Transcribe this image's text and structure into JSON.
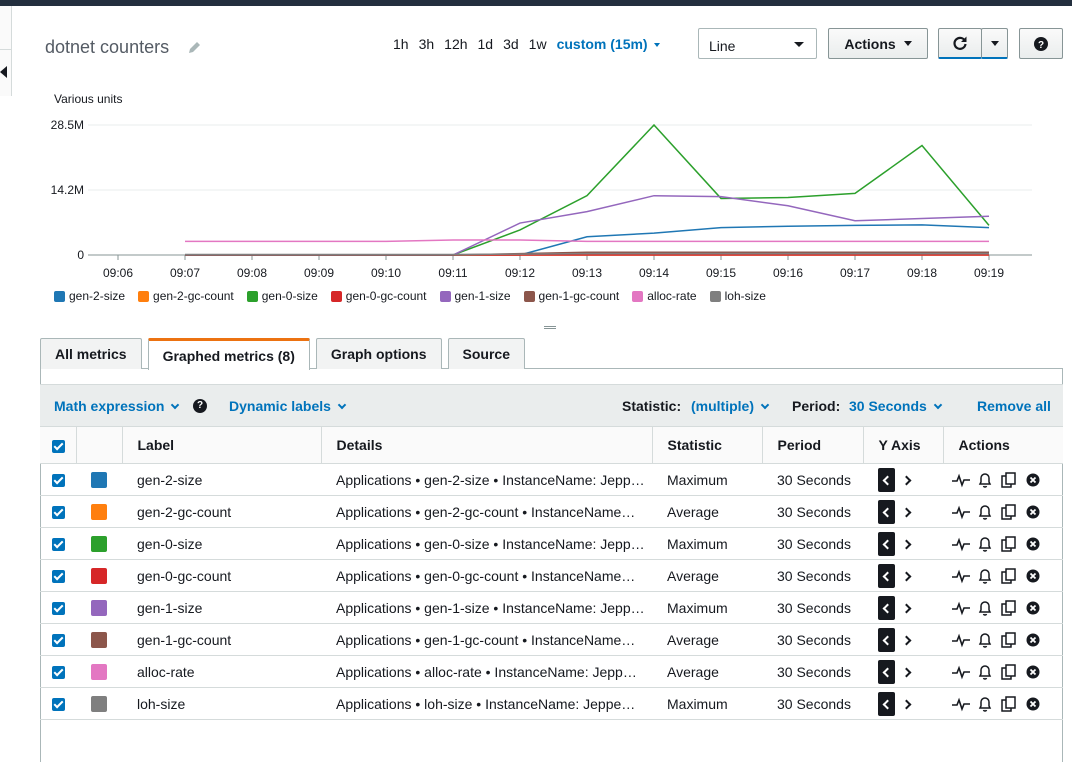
{
  "dashboard": {
    "title": "dotnet counters"
  },
  "time_ranges": [
    {
      "label": "1h"
    },
    {
      "label": "3h"
    },
    {
      "label": "12h"
    },
    {
      "label": "1d"
    },
    {
      "label": "3d"
    },
    {
      "label": "1w"
    },
    {
      "label": "custom (15m)",
      "active": true
    }
  ],
  "view_select": {
    "value": "Line"
  },
  "buttons": {
    "actions": "Actions"
  },
  "chart_data": {
    "type": "line",
    "ylabel": "Various units",
    "y_ticks": [
      "0",
      "14.2M",
      "28.5M"
    ],
    "ylim": [
      0,
      28.5
    ],
    "y_unit": "M",
    "x": [
      "09:06",
      "09:07",
      "09:08",
      "09:09",
      "09:10",
      "09:11",
      "09:12",
      "09:13",
      "09:14",
      "09:15",
      "09:16",
      "09:17",
      "09:18",
      "09:19"
    ],
    "grid": true,
    "legend_position": "bottom-left",
    "series": [
      {
        "name": "gen-2-size",
        "color": "#1f77b4",
        "values": [
          null,
          0,
          0,
          0,
          0,
          0,
          0,
          4.0,
          4.8,
          6.0,
          6.3,
          6.5,
          6.6,
          6.0
        ]
      },
      {
        "name": "gen-2-gc-count",
        "color": "#ff7f0e",
        "values": [
          null,
          0,
          0,
          0,
          0,
          0,
          0,
          0,
          0,
          0,
          0,
          0,
          0,
          0
        ]
      },
      {
        "name": "gen-0-size",
        "color": "#2ca02c",
        "values": [
          null,
          0,
          0,
          0,
          0,
          0,
          5.5,
          13.0,
          28.5,
          12.4,
          12.6,
          13.5,
          24.0,
          6.5
        ]
      },
      {
        "name": "gen-0-gc-count",
        "color": "#d62728",
        "values": [
          null,
          0,
          0,
          0,
          0,
          0,
          0,
          0,
          0,
          0,
          0,
          0,
          0,
          0
        ]
      },
      {
        "name": "gen-1-size",
        "color": "#9467bd",
        "values": [
          null,
          0,
          0,
          0,
          0,
          0,
          7.0,
          9.5,
          13.0,
          12.8,
          10.8,
          7.5,
          8.0,
          8.5
        ]
      },
      {
        "name": "gen-1-gc-count",
        "color": "#8c564b",
        "values": [
          null,
          0,
          0,
          0,
          0,
          0,
          0.3,
          0.6,
          0.6,
          0.6,
          0.6,
          0.6,
          0.6,
          0.6
        ]
      },
      {
        "name": "alloc-rate",
        "color": "#e377c2",
        "values": [
          null,
          3.0,
          3.0,
          3.0,
          3.0,
          3.3,
          3.3,
          3.0,
          3.0,
          3.0,
          3.0,
          3.0,
          3.0,
          3.0
        ]
      },
      {
        "name": "loh-size",
        "color": "#7f7f7f",
        "values": [
          null,
          0.1,
          0.1,
          0.1,
          0.1,
          0.1,
          0.2,
          0.3,
          0.3,
          0.3,
          0.3,
          0.3,
          0.3,
          0.3
        ]
      }
    ]
  },
  "tabs": [
    {
      "label": "All metrics"
    },
    {
      "label": "Graphed metrics (8)",
      "active": true
    },
    {
      "label": "Graph options"
    },
    {
      "label": "Source"
    }
  ],
  "toolbar": {
    "math_expression": "Math expression",
    "dynamic_labels": "Dynamic labels",
    "statistic_label": "Statistic:",
    "statistic_value": "(multiple)",
    "period_label": "Period:",
    "period_value": "30 Seconds",
    "remove_all": "Remove all"
  },
  "table": {
    "headers": {
      "label": "Label",
      "details": "Details",
      "statistic": "Statistic",
      "period": "Period",
      "y_axis": "Y Axis",
      "actions": "Actions"
    },
    "rows": [
      {
        "label": "gen-2-size",
        "color": "#1f77b4",
        "details": "Applications • gen-2-size • InstanceName: Jeppe…",
        "statistic": "Maximum",
        "period": "30 Seconds"
      },
      {
        "label": "gen-2-gc-count",
        "color": "#ff7f0e",
        "details": "Applications • gen-2-gc-count • InstanceName…",
        "statistic": "Average",
        "period": "30 Seconds"
      },
      {
        "label": "gen-0-size",
        "color": "#2ca02c",
        "details": "Applications • gen-0-size • InstanceName: Jepp…",
        "statistic": "Maximum",
        "period": "30 Seconds"
      },
      {
        "label": "gen-0-gc-count",
        "color": "#d62728",
        "details": "Applications • gen-0-gc-count • InstanceName…",
        "statistic": "Average",
        "period": "30 Seconds"
      },
      {
        "label": "gen-1-size",
        "color": "#9467bd",
        "details": "Applications • gen-1-size • InstanceName: Jepp…",
        "statistic": "Maximum",
        "period": "30 Seconds"
      },
      {
        "label": "gen-1-gc-count",
        "color": "#8c564b",
        "details": "Applications • gen-1-gc-count • InstanceName…",
        "statistic": "Average",
        "period": "30 Seconds"
      },
      {
        "label": "alloc-rate",
        "color": "#e377c2",
        "details": "Applications • alloc-rate • InstanceName: Jepp…",
        "statistic": "Average",
        "period": "30 Seconds"
      },
      {
        "label": "loh-size",
        "color": "#7f7f7f",
        "details": "Applications • loh-size • InstanceName: Jeppe…",
        "statistic": "Maximum",
        "period": "30 Seconds"
      }
    ]
  }
}
